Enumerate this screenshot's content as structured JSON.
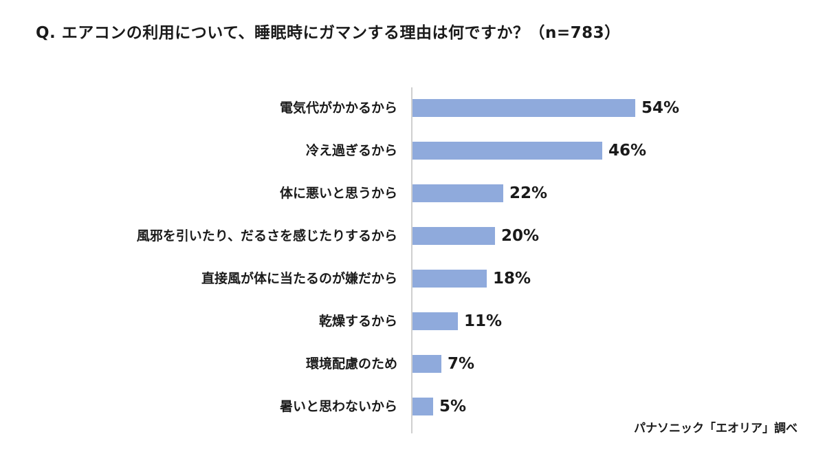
{
  "header": {
    "title": "Q. エアコンの利用について、睡眠時にガマンする理由は何ですか？（n=783）"
  },
  "footer": {
    "source": "パナソニック「エオリア」調べ"
  },
  "colors": {
    "bar": "#8faadc",
    "axis": "#bfbfbf"
  },
  "chart_data": {
    "type": "bar",
    "orientation": "horizontal",
    "categories": [
      "電気代がかかるから",
      "冷え過ぎるから",
      "体に悪いと思うから",
      "風邪を引いたり、だるさを感じたりするから",
      "直接風が体に当たるのが嫌だから",
      "乾燥するから",
      "環境配慮のため",
      "暑いと思わないから"
    ],
    "values": [
      54,
      46,
      22,
      20,
      18,
      11,
      7,
      5
    ],
    "value_labels": [
      "54%",
      "46%",
      "22%",
      "20%",
      "18%",
      "11%",
      "7%",
      "5%"
    ],
    "xlim": [
      0,
      54
    ],
    "grid": false,
    "legend": "none"
  }
}
